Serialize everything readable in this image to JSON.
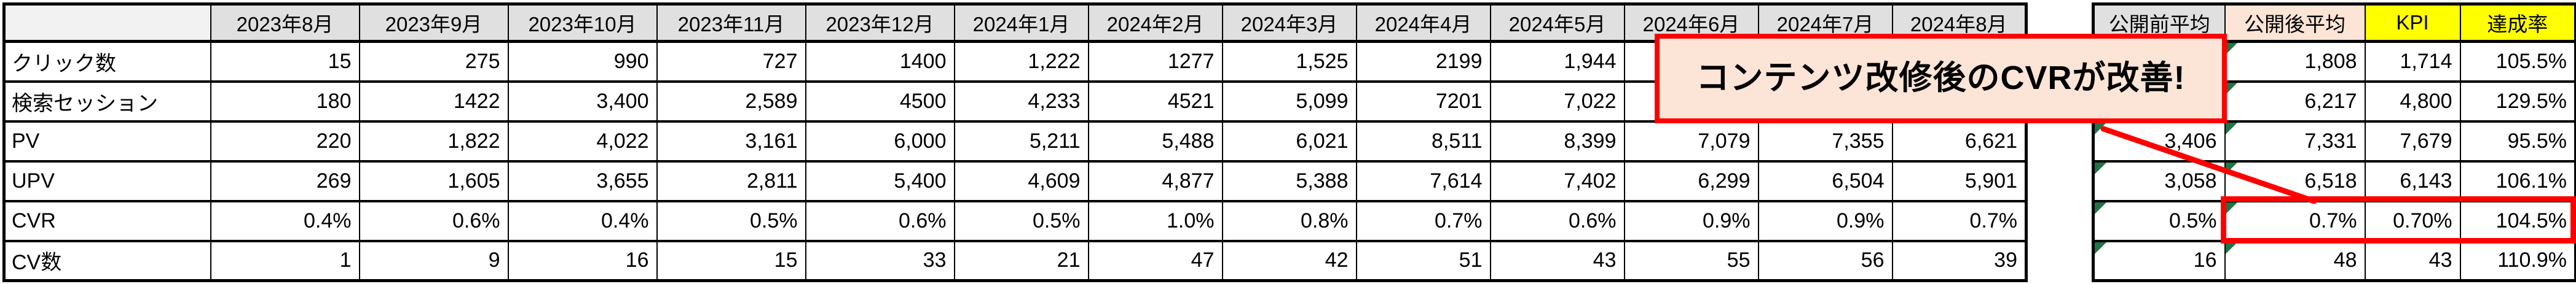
{
  "main_table": {
    "corner": "",
    "columns": [
      "2023年8月",
      "2023年9月",
      "2023年10月",
      "2023年11月",
      "2023年12月",
      "2024年1月",
      "2024年2月",
      "2024年3月",
      "2024年4月",
      "2024年5月",
      "2024年6月",
      "2024年7月",
      "2024年8月"
    ],
    "rows": [
      {
        "label": "クリック数",
        "values": [
          "15",
          "275",
          "990",
          "727",
          "1400",
          "1,222",
          "1277",
          "1,525",
          "2199",
          "1,944",
          "",
          "",
          ""
        ]
      },
      {
        "label": "検索セッション",
        "values": [
          "180",
          "1422",
          "3,400",
          "2,589",
          "4500",
          "4,233",
          "4521",
          "5,099",
          "7201",
          "7,022",
          "",
          "",
          ""
        ]
      },
      {
        "label": "PV",
        "values": [
          "220",
          "1,822",
          "4,022",
          "3,161",
          "6,000",
          "5,211",
          "5,488",
          "6,021",
          "8,511",
          "8,399",
          "7,079",
          "7,355",
          "6,621"
        ]
      },
      {
        "label": "UPV",
        "values": [
          "269",
          "1,605",
          "3,655",
          "2,811",
          "5,400",
          "4,609",
          "4,877",
          "5,388",
          "7,614",
          "7,402",
          "6,299",
          "6,504",
          "5,901"
        ]
      },
      {
        "label": "CVR",
        "values": [
          "0.4%",
          "0.6%",
          "0.4%",
          "0.5%",
          "0.6%",
          "0.5%",
          "1.0%",
          "0.8%",
          "0.7%",
          "0.6%",
          "0.9%",
          "0.9%",
          "0.7%"
        ]
      },
      {
        "label": "CV数",
        "values": [
          "1",
          "9",
          "16",
          "15",
          "33",
          "21",
          "47",
          "42",
          "51",
          "43",
          "55",
          "56",
          "39"
        ]
      }
    ]
  },
  "summary_table": {
    "columns": [
      {
        "label": "公開前平均",
        "theme": "gray"
      },
      {
        "label": "公開後平均",
        "theme": "peach"
      },
      {
        "label": "KPI",
        "theme": "yellow"
      },
      {
        "label": "達成率",
        "theme": "yellow"
      }
    ],
    "rows": [
      {
        "metric": "クリック数",
        "values": [
          "",
          "1,808",
          "1,714",
          "105.5%"
        ],
        "error_flags": [
          false,
          true,
          false,
          false
        ]
      },
      {
        "metric": "検索セッション",
        "values": [
          "",
          "6,217",
          "4,800",
          "129.5%"
        ],
        "error_flags": [
          false,
          true,
          false,
          false
        ]
      },
      {
        "metric": "PV",
        "values": [
          "3,406",
          "7,331",
          "7,679",
          "95.5%"
        ],
        "error_flags": [
          true,
          true,
          false,
          false
        ]
      },
      {
        "metric": "UPV",
        "values": [
          "3,058",
          "6,518",
          "6,143",
          "106.1%"
        ],
        "error_flags": [
          true,
          true,
          false,
          false
        ]
      },
      {
        "metric": "CVR",
        "values": [
          "0.5%",
          "0.7%",
          "0.70%",
          "104.5%"
        ],
        "error_flags": [
          true,
          true,
          false,
          false
        ]
      },
      {
        "metric": "CV数",
        "values": [
          "16",
          "48",
          "43",
          "110.9%"
        ],
        "error_flags": [
          true,
          true,
          false,
          false
        ]
      }
    ]
  },
  "callout": {
    "text": "コンテンツ改修後のCVRが改善!"
  },
  "annotations": {
    "highlighted_metric": "CVR",
    "highlighted_columns": [
      "公開後平均",
      "KPI",
      "達成率"
    ]
  },
  "colors": {
    "header_gray": "#e0e0e0",
    "corner_gray": "#f2f2f2",
    "peach": "#fce4d6",
    "yellow": "#ffff00",
    "accent_red": "#ff0000",
    "error_indicator_green": "#217346",
    "border_black": "#000000"
  }
}
